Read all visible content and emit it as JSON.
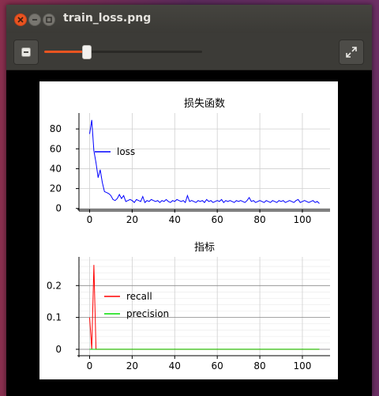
{
  "window": {
    "title": "train_loss.png"
  },
  "toolbar": {
    "zoom_level_fraction": 0.27
  },
  "chart_data": [
    {
      "type": "line",
      "title": "损失函数",
      "xlim": [
        -5,
        113
      ],
      "ylim": [
        -1,
        96
      ],
      "xticks": [
        0,
        20,
        40,
        60,
        80,
        100
      ],
      "yticks": [
        0,
        20,
        40,
        60,
        80
      ],
      "grid": true,
      "legend": "upper-left",
      "series": [
        {
          "name": "loss",
          "color": "#0000ff",
          "x": [
            0,
            1,
            2,
            3,
            4,
            5,
            6,
            7,
            8,
            9,
            10,
            11,
            12,
            13,
            14,
            15,
            16,
            17,
            18,
            19,
            20,
            21,
            22,
            23,
            24,
            25,
            26,
            27,
            28,
            29,
            30,
            31,
            32,
            33,
            34,
            35,
            36,
            37,
            38,
            39,
            40,
            41,
            42,
            43,
            44,
            45,
            46,
            47,
            48,
            49,
            50,
            51,
            52,
            53,
            54,
            55,
            56,
            57,
            58,
            59,
            60,
            61,
            62,
            63,
            64,
            65,
            66,
            67,
            68,
            69,
            70,
            71,
            72,
            73,
            74,
            75,
            76,
            77,
            78,
            79,
            80,
            81,
            82,
            83,
            84,
            85,
            86,
            87,
            88,
            89,
            90,
            91,
            92,
            93,
            94,
            95,
            96,
            97,
            98,
            99,
            100,
            101,
            102,
            103,
            104,
            105,
            106,
            107,
            108
          ],
          "y": [
            75,
            89,
            58,
            46,
            31,
            39,
            26,
            17,
            16,
            15,
            13,
            9,
            8,
            10,
            14,
            10,
            13,
            7,
            8,
            9,
            8,
            6,
            9,
            8,
            7,
            12,
            6,
            8,
            7,
            9,
            8,
            7,
            8,
            6,
            8,
            7,
            9,
            7,
            6,
            8,
            7,
            9,
            8,
            7,
            8,
            6,
            13,
            7,
            8,
            7,
            6,
            8,
            7,
            8,
            6,
            9,
            7,
            8,
            6,
            7,
            8,
            7,
            9,
            6,
            8,
            7,
            8,
            7,
            6,
            8,
            7,
            8,
            7,
            6,
            8,
            11,
            7,
            8,
            6,
            7,
            8,
            7,
            6,
            8,
            7,
            6,
            8,
            7,
            6,
            8,
            7,
            8,
            6,
            7,
            8,
            7,
            6,
            8,
            9,
            6,
            7,
            8,
            7,
            6,
            7,
            8,
            6,
            7,
            5
          ]
        }
      ]
    },
    {
      "type": "line",
      "title": "指标",
      "xlim": [
        -5,
        113
      ],
      "ylim": [
        -0.02,
        0.29
      ],
      "xticks": [
        0,
        20,
        40,
        60,
        80,
        100
      ],
      "yticks": [
        0,
        0.1,
        0.2
      ],
      "grid": true,
      "legend": "upper-left",
      "series": [
        {
          "name": "recall",
          "color": "#ff0000",
          "x": [
            0,
            1,
            2,
            3,
            4,
            5,
            10,
            20,
            40,
            60,
            80,
            100,
            108
          ],
          "y": [
            0.1,
            0,
            0.265,
            0,
            0,
            0,
            0,
            0,
            0,
            0,
            0,
            0,
            0
          ]
        },
        {
          "name": "precision",
          "color": "#00dd00",
          "x": [
            0,
            1,
            2,
            3,
            4,
            5,
            10,
            20,
            40,
            60,
            80,
            100,
            108
          ],
          "y": [
            0,
            0,
            0,
            0,
            0,
            0,
            0,
            0,
            0,
            0,
            0,
            0,
            0
          ]
        }
      ]
    }
  ]
}
